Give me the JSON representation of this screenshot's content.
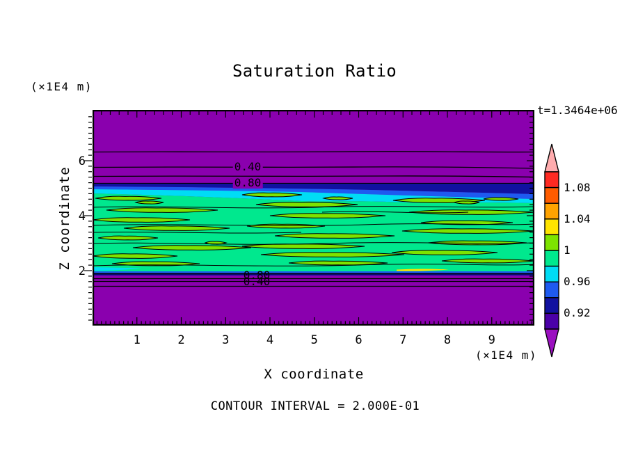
{
  "title": "Saturation Ratio",
  "time_label": "t=1.3464e+06",
  "footer_note": "CONTOUR INTERVAL = 2.000E-01",
  "axes": {
    "x": {
      "label": "X coordinate",
      "unit": "(×1E4 m)",
      "ticks": [
        "1",
        "2",
        "3",
        "4",
        "5",
        "6",
        "7",
        "8",
        "9"
      ]
    },
    "z": {
      "label": "Z coordinate",
      "unit": "(×1E4 m)",
      "ticks": [
        "6",
        "4",
        "2"
      ]
    }
  },
  "contour_labels": {
    "upper": [
      "0.40",
      "0.80"
    ],
    "lower": [
      "0.80",
      "0.40"
    ]
  },
  "colorbar": {
    "labels": [
      "1.08",
      "1.04",
      "1",
      "0.96",
      "0.92"
    ],
    "segment_colors_top_to_bottom": [
      "#ff2a22",
      "#ff5c00",
      "#ffa300",
      "#ffe400",
      "#7de300",
      "#00e88e",
      "#00dcf5",
      "#1e5af0",
      "#1111a0",
      "#4b00a8"
    ],
    "over_arrow_color": "#ffacae",
    "under_arrow_color": "#9b10c0"
  },
  "colors": {
    "undersaturated_purple": "#8a00ae",
    "band_navy": "#1111a0",
    "band_blue": "#1e5af0",
    "band_cyan": "#00dcf5",
    "band_green": "#00e88e",
    "band_chartreuse": "#7de300",
    "band_yellow": "#ffe400",
    "contour_line": "#000000"
  },
  "chart_data": {
    "type": "heatmap",
    "title": "Saturation Ratio",
    "xlabel": "X coordinate (×1E4 m)",
    "ylabel": "Z coordinate (×1E4 m)",
    "time_annotation": "t=1.3464e+06",
    "x_range": [
      0,
      10
    ],
    "z_range": [
      0,
      7.9
    ],
    "x_ticks": [
      1,
      2,
      3,
      4,
      5,
      6,
      7,
      8,
      9
    ],
    "z_ticks": [
      2,
      4,
      6
    ],
    "fill_levels": {
      "min": 0.9,
      "max": 1.1,
      "step": 0.02,
      "labeled_values": [
        1.08,
        1.04,
        1,
        0.96,
        0.92
      ]
    },
    "line_contour_interval": 0.2,
    "labeled_line_contours": [
      {
        "value": 0.4,
        "z": 5.77,
        "side": "upper"
      },
      {
        "value": 0.8,
        "z": 5.19,
        "side": "upper"
      },
      {
        "value": 0.8,
        "z": 1.92,
        "side": "lower"
      },
      {
        "value": 0.4,
        "z": 1.62,
        "side": "lower"
      }
    ],
    "field_summary": [
      {
        "region": "z > 5.2",
        "saturation_ratio": "< 0.90 (purple, below color scale)"
      },
      {
        "region": "z 5.0 to 5.2",
        "saturation_ratio": "0.90 to 0.98 (navy/blue/cyan transition strip)"
      },
      {
        "region": "z 2.0 to 5.0",
        "saturation_ratio": "0.96 to 1.02 (green saturated layer with streaky 1.0 contours)"
      },
      {
        "region": "z 1.9 to 2.0",
        "saturation_ratio": "0.90 to 0.96 (thin blue/cyan transition strip)"
      },
      {
        "region": "z < 1.9",
        "saturation_ratio": "< 0.90 (purple, below color scale)"
      }
    ],
    "legend_position": "right vertical colorbar with over/under range arrows"
  }
}
